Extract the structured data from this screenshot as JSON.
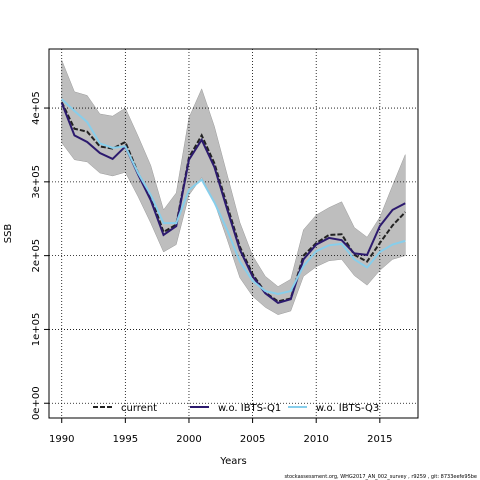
{
  "chart_data": {
    "type": "line",
    "xlabel": "Years",
    "ylabel": "SSB",
    "xlim": [
      1989,
      2018
    ],
    "ylim": [
      -20000,
      480000
    ],
    "x_ticks": [
      1990,
      1995,
      2000,
      2005,
      2010,
      2015
    ],
    "x_tick_labels": [
      "1990",
      "1995",
      "2000",
      "2005",
      "2010",
      "2015"
    ],
    "y_ticks": [
      0,
      100000,
      200000,
      300000,
      400000
    ],
    "y_tick_labels": [
      "0e+00",
      "1e+05",
      "2e+05",
      "3e+05",
      "4e+05"
    ],
    "grid": true,
    "legend_position": "bottom",
    "x": [
      1990,
      1991,
      1992,
      1993,
      1994,
      1995,
      1996,
      1997,
      1998,
      1999,
      2000,
      2001,
      2002,
      2003,
      2004,
      2005,
      2006,
      2007,
      2008,
      2009,
      2010,
      2011,
      2012,
      2013,
      2014,
      2015,
      2016,
      2017
    ],
    "band": {
      "color": "#bebebe",
      "upper": [
        465000,
        422000,
        417000,
        392000,
        389000,
        400000,
        362000,
        322000,
        262000,
        285000,
        387000,
        426000,
        375000,
        310000,
        245000,
        200000,
        172000,
        158000,
        168000,
        235000,
        255000,
        265000,
        273000,
        238000,
        225000,
        252000,
        295000,
        337000
      ],
      "lower": [
        353000,
        330000,
        327000,
        312000,
        308000,
        313000,
        280000,
        244000,
        205000,
        215000,
        282000,
        306000,
        272000,
        222000,
        170000,
        145000,
        130000,
        120000,
        125000,
        172000,
        185000,
        193000,
        195000,
        173000,
        160000,
        180000,
        195000,
        200000
      ]
    },
    "series": [
      {
        "name": "current",
        "color": "#222222",
        "dashed": true,
        "values": [
          408000,
          372000,
          368000,
          348000,
          345000,
          354000,
          312000,
          280000,
          232000,
          242000,
          333000,
          363000,
          325000,
          268000,
          212000,
          175000,
          150000,
          138000,
          142000,
          200000,
          217000,
          228000,
          229000,
          201000,
          192000,
          217000,
          241000,
          259000
        ]
      },
      {
        "name": "w.o. IBTS-Q1",
        "color": "#2c1a6e",
        "dashed": false,
        "values": [
          407000,
          363000,
          354000,
          339000,
          331000,
          348000,
          310000,
          275000,
          228000,
          240000,
          330000,
          357000,
          320000,
          263000,
          208000,
          172000,
          149000,
          136000,
          141000,
          195000,
          215000,
          224000,
          221000,
          203000,
          201000,
          240000,
          262000,
          271000
        ]
      },
      {
        "name": "w.o. IBTS-Q3",
        "color": "#87ceeb",
        "dashed": false,
        "values": [
          412000,
          396000,
          381000,
          352000,
          346000,
          348000,
          312000,
          282000,
          244000,
          244000,
          289000,
          303000,
          272000,
          235000,
          192000,
          166000,
          152000,
          148000,
          152000,
          186000,
          206000,
          214000,
          216000,
          195000,
          184000,
          205000,
          215000,
          220000
        ]
      }
    ]
  },
  "footer": "stockassessment.org, WHG2017_AN_002_survey , r9259 , git: 8733eefe95be"
}
